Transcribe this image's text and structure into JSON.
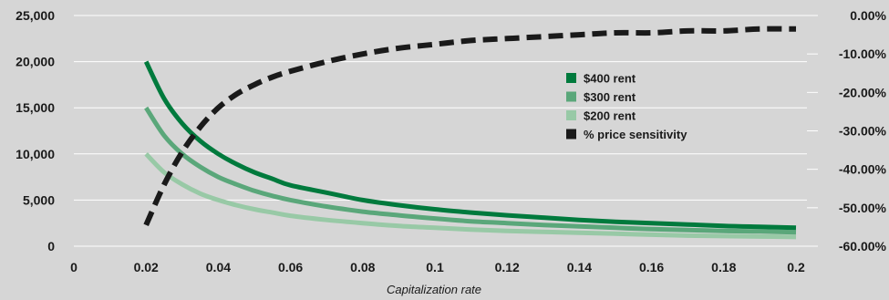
{
  "chart_data": {
    "type": "line",
    "title": "",
    "xlabel": "Capitalization rate",
    "ylabel_left": "",
    "ylabel_right": "",
    "xlim": [
      0,
      0.2
    ],
    "ylim_left": [
      0,
      25000
    ],
    "ylim_right": [
      -0.6,
      0
    ],
    "x_ticks": [
      "0",
      "0.02",
      "0.04",
      "0.06",
      "0.08",
      "0.1",
      "0.12",
      "0.14",
      "0.16",
      "0.18",
      "0.2"
    ],
    "y_ticks_left": [
      "0",
      "5,000",
      "10,000",
      "15,000",
      "20,000",
      "25,000"
    ],
    "y_ticks_right": [
      "-60.00%",
      "-50.00%",
      "-40.00%",
      "-30.00%",
      "-20.00%",
      "-10.00%",
      "0.00%"
    ],
    "grid": "horizontal",
    "legend_position": "center-right",
    "series": [
      {
        "name": "$400 rent",
        "axis": "left",
        "color": "#007a3d",
        "style": "solid",
        "x": [
          0.02,
          0.025,
          0.03,
          0.035,
          0.04,
          0.045,
          0.05,
          0.055,
          0.06,
          0.07,
          0.08,
          0.09,
          0.1,
          0.11,
          0.12,
          0.13,
          0.14,
          0.15,
          0.16,
          0.17,
          0.18,
          0.19,
          0.2
        ],
        "y": [
          20000,
          16000,
          13300,
          11400,
          10000,
          8900,
          8000,
          7300,
          6600,
          5800,
          5000,
          4450,
          4000,
          3650,
          3350,
          3100,
          2850,
          2650,
          2500,
          2350,
          2200,
          2100,
          2000
        ]
      },
      {
        "name": "$300 rent",
        "axis": "left",
        "color": "#5aa77a",
        "style": "solid",
        "x": [
          0.02,
          0.025,
          0.03,
          0.035,
          0.04,
          0.045,
          0.05,
          0.055,
          0.06,
          0.07,
          0.08,
          0.09,
          0.1,
          0.11,
          0.12,
          0.13,
          0.14,
          0.15,
          0.16,
          0.17,
          0.18,
          0.19,
          0.2
        ],
        "y": [
          15000,
          12000,
          10000,
          8600,
          7500,
          6700,
          6000,
          5450,
          5000,
          4300,
          3750,
          3350,
          3000,
          2700,
          2500,
          2300,
          2150,
          2000,
          1850,
          1750,
          1650,
          1600,
          1500
        ]
      },
      {
        "name": "$200 rent",
        "axis": "left",
        "color": "#98c9a6",
        "style": "solid",
        "x": [
          0.02,
          0.025,
          0.03,
          0.035,
          0.04,
          0.045,
          0.05,
          0.055,
          0.06,
          0.07,
          0.08,
          0.09,
          0.1,
          0.11,
          0.12,
          0.13,
          0.14,
          0.15,
          0.16,
          0.17,
          0.18,
          0.19,
          0.2
        ],
        "y": [
          10000,
          8000,
          6700,
          5700,
          5000,
          4450,
          4000,
          3650,
          3300,
          2850,
          2500,
          2200,
          2000,
          1800,
          1650,
          1550,
          1450,
          1350,
          1250,
          1150,
          1100,
          1050,
          1000
        ]
      },
      {
        "name": "% price sensitivity",
        "axis": "right",
        "color": "#1a1a1a",
        "style": "dashed",
        "x": [
          0.02,
          0.025,
          0.03,
          0.035,
          0.04,
          0.045,
          0.05,
          0.055,
          0.06,
          0.07,
          0.08,
          0.09,
          0.1,
          0.11,
          0.12,
          0.13,
          0.14,
          0.15,
          0.16,
          0.17,
          0.18,
          0.19,
          0.2
        ],
        "y": [
          -0.545,
          -0.44,
          -0.355,
          -0.29,
          -0.24,
          -0.205,
          -0.18,
          -0.16,
          -0.145,
          -0.12,
          -0.1,
          -0.085,
          -0.075,
          -0.065,
          -0.06,
          -0.055,
          -0.05,
          -0.045,
          -0.045,
          -0.04,
          -0.04,
          -0.035,
          -0.035
        ]
      }
    ]
  }
}
